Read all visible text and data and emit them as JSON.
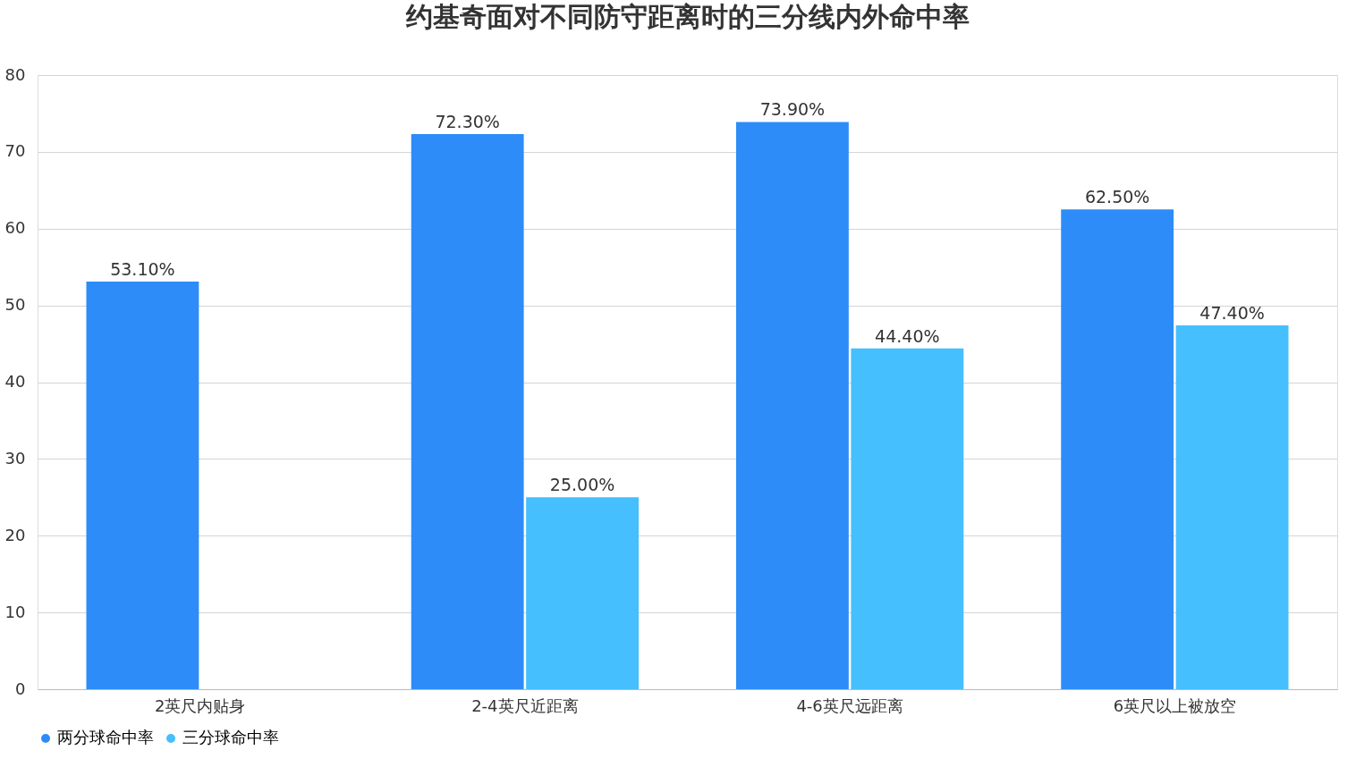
{
  "chart_data": {
    "type": "bar",
    "title": "约基奇面对不同防守距离时的三分线内外命中率",
    "categories": [
      "2英尺内贴身",
      "2-4英尺近距离",
      "4-6英尺远距离",
      "6英尺以上被放空"
    ],
    "series": [
      {
        "name": "两分球命中率",
        "color": "#2d8cf8",
        "values": [
          53.1,
          72.3,
          73.9,
          62.5
        ],
        "value_labels": [
          "53.10%",
          "72.30%",
          "73.90%",
          "62.50%"
        ]
      },
      {
        "name": "三分球命中率",
        "color": "#45bffd",
        "values": [
          null,
          25.0,
          44.4,
          47.4
        ],
        "value_labels": [
          null,
          "25.00%",
          "44.40%",
          "47.40%"
        ]
      }
    ],
    "ylim": [
      0,
      80
    ],
    "yticks": [
      0,
      10,
      20,
      30,
      40,
      50,
      60,
      70,
      80
    ],
    "grid": "y",
    "legend": "bottom"
  }
}
